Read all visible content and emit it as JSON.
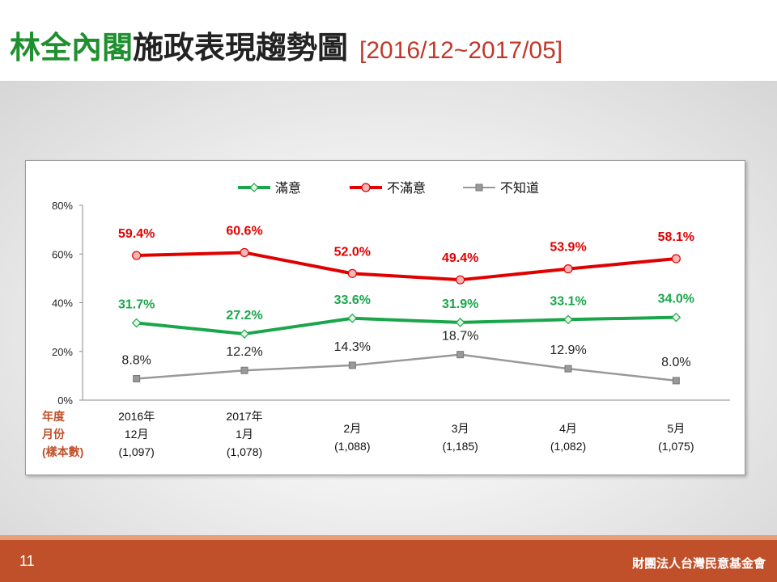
{
  "title": {
    "highlight": "林全內閣",
    "main": "施政表現趨勢圖",
    "range": "[2016/12~2017/05]"
  },
  "footer": {
    "page_number": "11",
    "organization": "財團法人台灣民意基金會"
  },
  "colors": {
    "satisfied": "#1aa64a",
    "dissatisfied": "#e00000",
    "unknown": "#999999",
    "title_highlight": "#1f8f2f",
    "footer": "#c0502a"
  },
  "chart_data": {
    "type": "line",
    "title": "",
    "ylim": [
      0,
      80
    ],
    "yticks": [
      "0%",
      "20%",
      "40%",
      "60%",
      "80%"
    ],
    "row_labels": [
      "年度",
      "月份",
      "(樣本數)"
    ],
    "categories": [
      {
        "year": "2016年",
        "month": "12月",
        "sample": "(1,097)"
      },
      {
        "year": "2017年",
        "month": "1月",
        "sample": "(1,078)"
      },
      {
        "year": "",
        "month": "2月",
        "sample": "(1,088)"
      },
      {
        "year": "",
        "month": "3月",
        "sample": "(1,185)"
      },
      {
        "year": "",
        "month": "4月",
        "sample": "(1,082)"
      },
      {
        "year": "",
        "month": "5月",
        "sample": "(1,075)"
      }
    ],
    "legend_position": "top-center",
    "series": [
      {
        "name": "滿意",
        "color": "#1aa64a",
        "marker": "diamond",
        "values": [
          31.7,
          27.2,
          33.6,
          31.9,
          33.1,
          34.0
        ],
        "labels": [
          "31.7%",
          "27.2%",
          "33.6%",
          "31.9%",
          "33.1%",
          "34.0%"
        ]
      },
      {
        "name": "不滿意",
        "color": "#e00000",
        "marker": "circle",
        "values": [
          59.4,
          60.6,
          52.0,
          49.4,
          53.9,
          58.1
        ],
        "labels": [
          "59.4%",
          "60.6%",
          "52.0%",
          "49.4%",
          "53.9%",
          "58.1%"
        ]
      },
      {
        "name": "不知道",
        "color": "#999999",
        "marker": "square-x",
        "values": [
          8.8,
          12.2,
          14.3,
          18.7,
          12.9,
          8.0
        ],
        "labels": [
          "8.8%",
          "12.2%",
          "14.3%",
          "18.7%",
          "12.9%",
          "8.0%"
        ]
      }
    ]
  }
}
